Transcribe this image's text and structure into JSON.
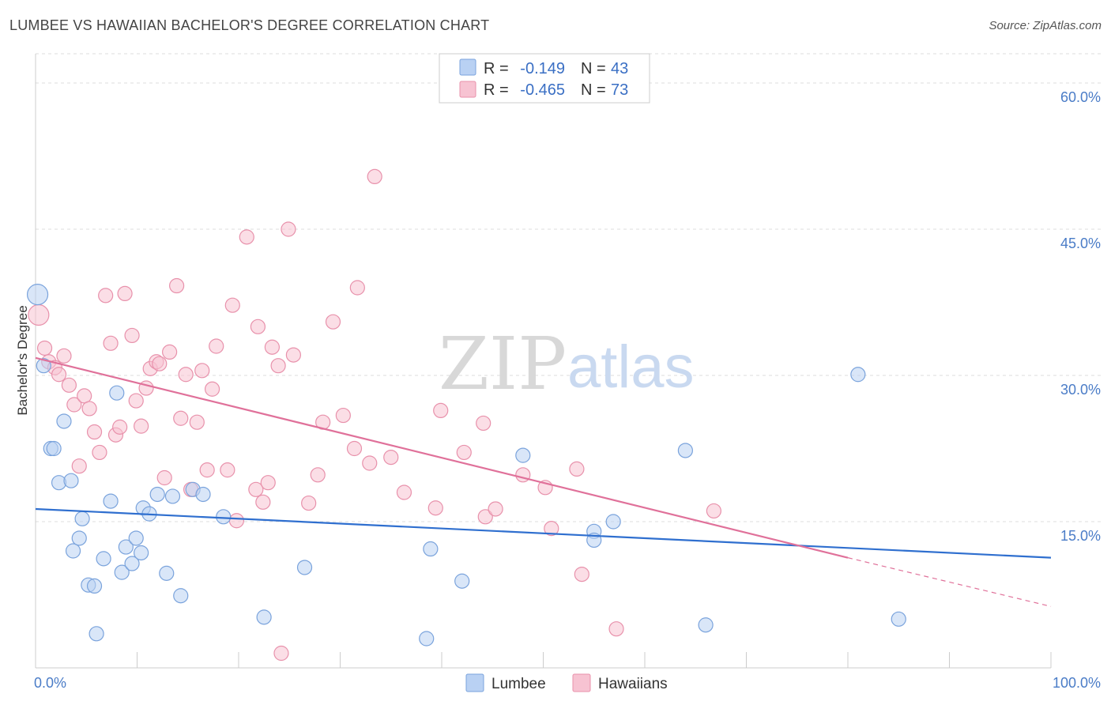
{
  "header": {
    "title": "LUMBEE VS HAWAIIAN BACHELOR'S DEGREE CORRELATION CHART",
    "source": "Source: ZipAtlas.com"
  },
  "watermark": {
    "zip": "ZIP",
    "atlas": "atlas"
  },
  "colors": {
    "lumbee_fill": "#b9d1f3",
    "lumbee_stroke": "#7aa3dc",
    "lumbee_line": "#2f6fcf",
    "hawaiian_fill": "#f7c3d2",
    "hawaiian_stroke": "#e891ab",
    "hawaiian_line": "#e0719a",
    "grid": "#dddddd",
    "tick_label": "#4a7cc7"
  },
  "legend": {
    "rows": [
      {
        "r_label": "R =",
        "r_value": "-0.149",
        "n_label": "N =",
        "n_value": "43"
      },
      {
        "r_label": "R =",
        "r_value": "-0.465",
        "n_label": "N =",
        "n_value": "73"
      }
    ]
  },
  "bottom_legend": {
    "lumbee": "Lumbee",
    "hawaiians": "Hawaiians"
  },
  "chart_data": {
    "type": "scatter",
    "title": "LUMBEE VS HAWAIIAN BACHELOR'S DEGREE CORRELATION CHART",
    "xlabel": "",
    "ylabel": "Bachelor's Degree",
    "xlim": [
      0,
      100
    ],
    "ylim": [
      0,
      63
    ],
    "x_tick_labels": [
      "0.0%",
      "100.0%"
    ],
    "y_ticks": [
      15,
      30,
      45,
      60
    ],
    "y_tick_labels": [
      "15.0%",
      "30.0%",
      "45.0%",
      "60.0%"
    ],
    "grid": "horizontal dashed",
    "legend_placement": "top-center",
    "series": [
      {
        "name": "Lumbee",
        "r": -0.149,
        "n": 43,
        "trend": {
          "x": [
            0,
            100
          ],
          "y": [
            16.3,
            11.3
          ]
        },
        "points": [
          [
            0.2,
            38.3
          ],
          [
            0.8,
            31.0
          ],
          [
            1.5,
            22.5
          ],
          [
            1.8,
            22.5
          ],
          [
            2.3,
            19.0
          ],
          [
            2.8,
            25.3
          ],
          [
            3.5,
            19.2
          ],
          [
            3.7,
            12.0
          ],
          [
            4.3,
            13.3
          ],
          [
            4.6,
            15.3
          ],
          [
            5.2,
            8.5
          ],
          [
            5.8,
            8.4
          ],
          [
            6.0,
            3.5
          ],
          [
            6.7,
            11.2
          ],
          [
            7.4,
            17.1
          ],
          [
            8.0,
            28.2
          ],
          [
            8.5,
            9.8
          ],
          [
            8.9,
            12.4
          ],
          [
            9.5,
            10.7
          ],
          [
            9.9,
            13.3
          ],
          [
            10.4,
            11.8
          ],
          [
            10.6,
            16.4
          ],
          [
            11.2,
            15.8
          ],
          [
            12.0,
            17.8
          ],
          [
            12.9,
            9.7
          ],
          [
            13.5,
            17.6
          ],
          [
            14.3,
            7.4
          ],
          [
            15.5,
            18.3
          ],
          [
            16.5,
            17.8
          ],
          [
            18.5,
            15.5
          ],
          [
            22.5,
            5.2
          ],
          [
            26.5,
            10.3
          ],
          [
            38.5,
            3.0
          ],
          [
            38.9,
            12.2
          ],
          [
            42.0,
            8.9
          ],
          [
            48.0,
            21.8
          ],
          [
            55.0,
            14.0
          ],
          [
            55.0,
            13.1
          ],
          [
            56.9,
            15.0
          ],
          [
            64.0,
            22.3
          ],
          [
            66.0,
            4.4
          ],
          [
            81.0,
            30.1
          ],
          [
            85.0,
            5.0
          ]
        ]
      },
      {
        "name": "Hawaiians",
        "r": -0.465,
        "n": 73,
        "trend": {
          "x": [
            0,
            80
          ],
          "y": [
            31.8,
            11.3
          ],
          "dashed_to": {
            "x": 100,
            "y": 6.3
          }
        },
        "points": [
          [
            0.3,
            36.2
          ],
          [
            0.9,
            32.8
          ],
          [
            1.3,
            31.4
          ],
          [
            1.9,
            30.8
          ],
          [
            2.3,
            30.1
          ],
          [
            2.8,
            32.0
          ],
          [
            3.3,
            29.0
          ],
          [
            3.8,
            27.0
          ],
          [
            4.3,
            20.7
          ],
          [
            4.8,
            27.9
          ],
          [
            5.3,
            26.6
          ],
          [
            5.8,
            24.2
          ],
          [
            6.3,
            22.1
          ],
          [
            6.9,
            38.2
          ],
          [
            7.4,
            33.3
          ],
          [
            7.9,
            23.9
          ],
          [
            8.3,
            24.7
          ],
          [
            8.8,
            38.4
          ],
          [
            9.5,
            34.1
          ],
          [
            9.9,
            27.4
          ],
          [
            10.4,
            24.8
          ],
          [
            10.9,
            28.7
          ],
          [
            11.3,
            30.7
          ],
          [
            11.9,
            31.4
          ],
          [
            12.2,
            31.2
          ],
          [
            12.7,
            19.5
          ],
          [
            13.2,
            32.4
          ],
          [
            13.9,
            39.2
          ],
          [
            14.3,
            25.6
          ],
          [
            14.8,
            30.1
          ],
          [
            15.3,
            18.3
          ],
          [
            15.9,
            25.2
          ],
          [
            16.4,
            30.5
          ],
          [
            16.9,
            20.3
          ],
          [
            17.4,
            28.6
          ],
          [
            17.8,
            33.0
          ],
          [
            18.9,
            20.3
          ],
          [
            19.4,
            37.2
          ],
          [
            19.8,
            15.1
          ],
          [
            20.8,
            44.2
          ],
          [
            21.7,
            18.3
          ],
          [
            21.9,
            35.0
          ],
          [
            22.4,
            17.0
          ],
          [
            22.9,
            19.0
          ],
          [
            23.3,
            32.9
          ],
          [
            23.9,
            31.0
          ],
          [
            24.9,
            45.0
          ],
          [
            25.4,
            32.1
          ],
          [
            26.9,
            16.9
          ],
          [
            27.8,
            19.8
          ],
          [
            28.3,
            25.2
          ],
          [
            29.3,
            35.5
          ],
          [
            30.3,
            25.9
          ],
          [
            31.4,
            22.5
          ],
          [
            31.7,
            39.0
          ],
          [
            32.9,
            21.0
          ],
          [
            33.4,
            50.4
          ],
          [
            35.0,
            21.6
          ],
          [
            36.3,
            18.0
          ],
          [
            39.4,
            16.4
          ],
          [
            39.9,
            26.4
          ],
          [
            42.2,
            22.1
          ],
          [
            44.1,
            25.1
          ],
          [
            44.3,
            15.5
          ],
          [
            45.3,
            16.3
          ],
          [
            48.0,
            19.8
          ],
          [
            50.2,
            18.5
          ],
          [
            50.8,
            14.3
          ],
          [
            53.8,
            9.6
          ],
          [
            53.3,
            20.4
          ],
          [
            57.2,
            4.0
          ],
          [
            66.8,
            16.1
          ],
          [
            24.2,
            1.5
          ]
        ]
      }
    ]
  }
}
